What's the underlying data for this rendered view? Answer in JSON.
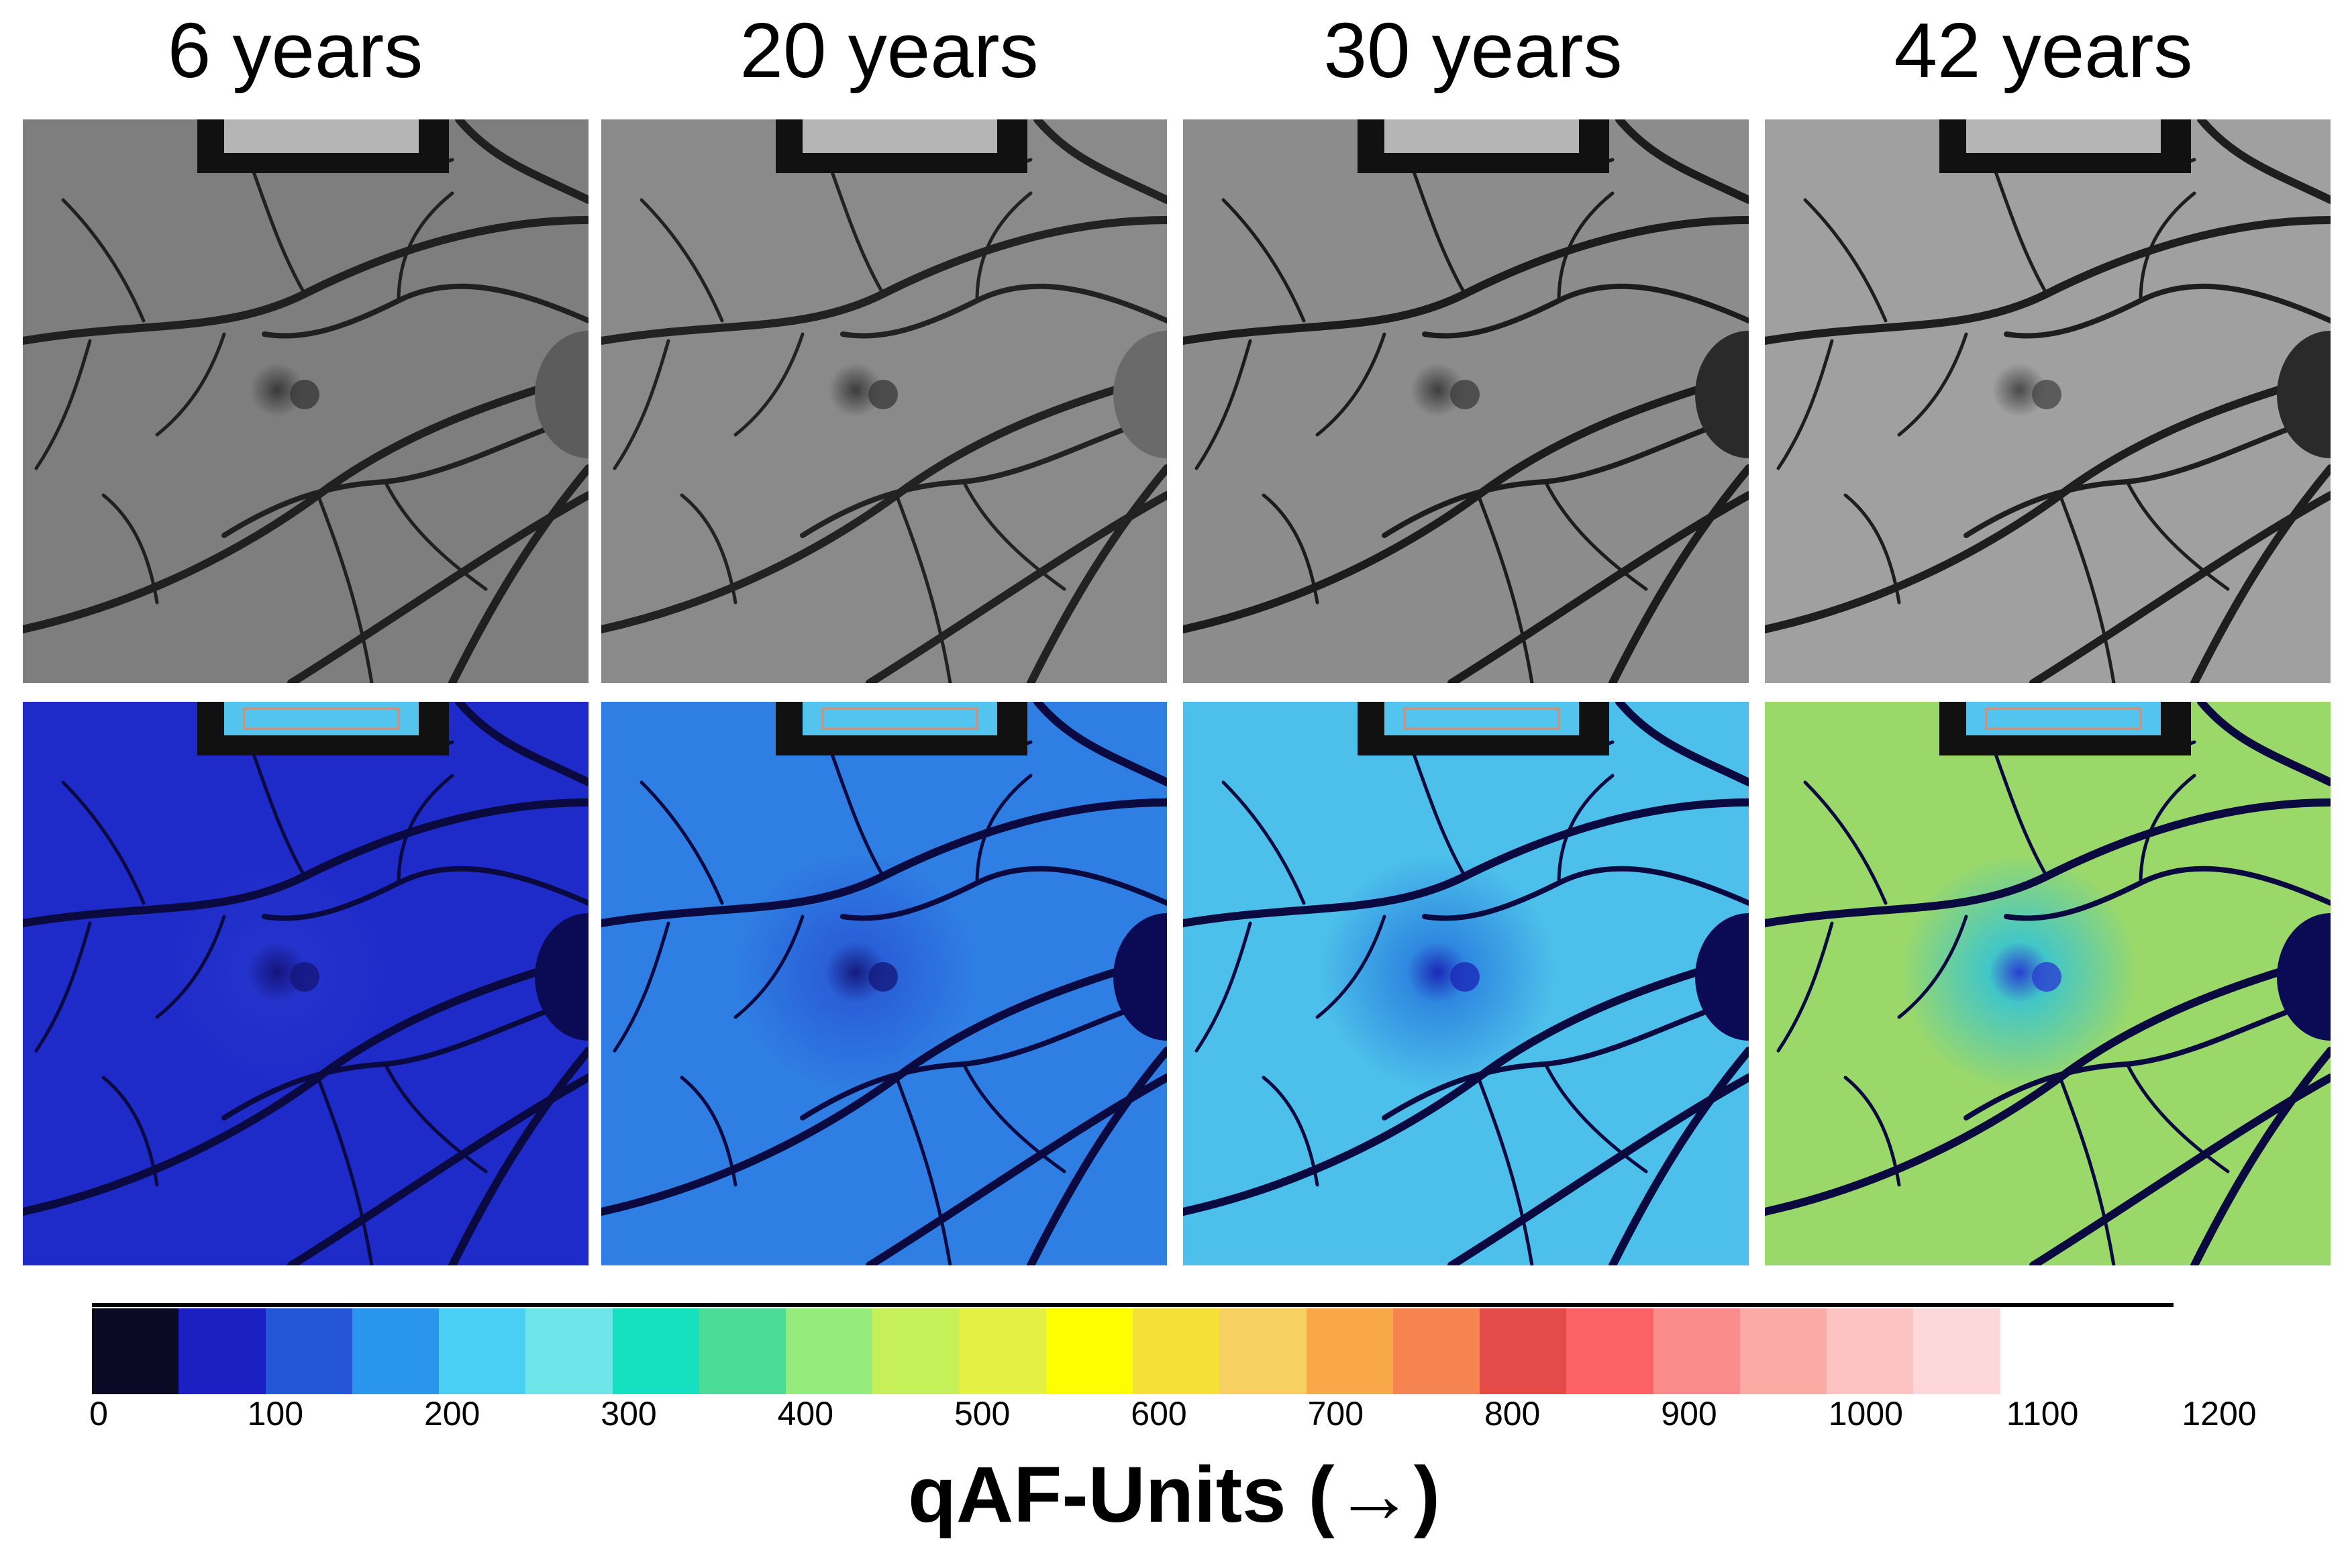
{
  "titles": [
    "6 years",
    "20 years",
    "30 years",
    "42 years"
  ],
  "panels": {
    "top": [
      {
        "bg": "#7e7e7e",
        "disc": "#5c5c5c",
        "fovea": "#3a3a3a",
        "vessel": "#202020"
      },
      {
        "bg": "#8a8a8a",
        "disc": "#6a6a6a",
        "fovea": "#3c3c3c",
        "vessel": "#222222"
      },
      {
        "bg": "#8c8c8c",
        "disc": "#2a2a2a",
        "fovea": "#3e3e3e",
        "vessel": "#1c1c1c"
      },
      {
        "bg": "#a0a0a0",
        "disc": "#2a2a2a",
        "fovea": "#4a4a4a",
        "vessel": "#1e1e1e"
      }
    ],
    "bottom": [
      {
        "bg": "#1f2bc9",
        "mid": "#2433cc",
        "disc": "#0b0b55",
        "fovea": "#14157a",
        "vessel": "#0a0a40"
      },
      {
        "bg": "#2e7ee3",
        "mid": "#2a5fd8",
        "disc": "#0b0b55",
        "fovea": "#141a7e",
        "vessel": "#0a0a40"
      },
      {
        "bg": "#4cc0ea",
        "mid": "#2f88e0",
        "disc": "#0b0b55",
        "fovea": "#1c29b8",
        "vessel": "#0a0a40"
      },
      {
        "bg": "#9bd86a",
        "mid": "#42c6c8",
        "disc": "#0b0b55",
        "fovea": "#2a3fd0",
        "vessel": "#0a0a40"
      }
    ]
  },
  "colorbar": {
    "colors": [
      "#0b0a24",
      "#1c1fc2",
      "#2656d8",
      "#2a95ec",
      "#4ad0f5",
      "#6ee5e9",
      "#14dfbf",
      "#4bdc98",
      "#96eb7d",
      "#c5f058",
      "#e5f044",
      "#fefe00",
      "#f5e038",
      "#f6d060",
      "#f8a848",
      "#f58450",
      "#e54a4a",
      "#fc6265",
      "#fc8c8c",
      "#fcaaa4",
      "#fdc2c2",
      "#fdd8da",
      "#ffffff",
      "#ffffff"
    ],
    "ticks": [
      "0",
      "100",
      "200",
      "300",
      "400",
      "500",
      "600",
      "700",
      "800",
      "900",
      "1000",
      "1100",
      "1200"
    ],
    "label": "qAF-Units (→)"
  }
}
